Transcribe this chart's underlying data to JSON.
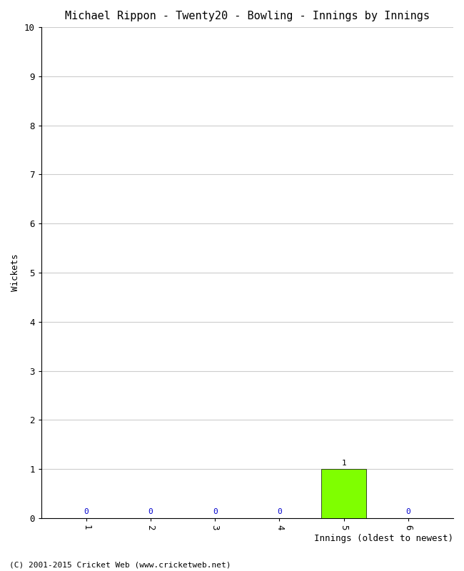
{
  "title": "Michael Rippon - Twenty20 - Bowling - Innings by Innings",
  "xlabel": "Innings (oldest to newest)",
  "ylabel": "Wickets",
  "categories": [
    1,
    2,
    3,
    4,
    5,
    6
  ],
  "values": [
    0,
    0,
    0,
    0,
    1,
    0
  ],
  "zero_color": "#0000cc",
  "nonzero_color": "#7fff00",
  "ylim": [
    0,
    10
  ],
  "yticks": [
    0,
    1,
    2,
    3,
    4,
    5,
    6,
    7,
    8,
    9,
    10
  ],
  "background_color": "#ffffff",
  "grid_color": "#cccccc",
  "footer": "(C) 2001-2015 Cricket Web (www.cricketweb.net)",
  "title_fontsize": 11,
  "axis_label_fontsize": 9,
  "tick_fontsize": 9,
  "annotation_fontsize": 8,
  "footer_fontsize": 8
}
